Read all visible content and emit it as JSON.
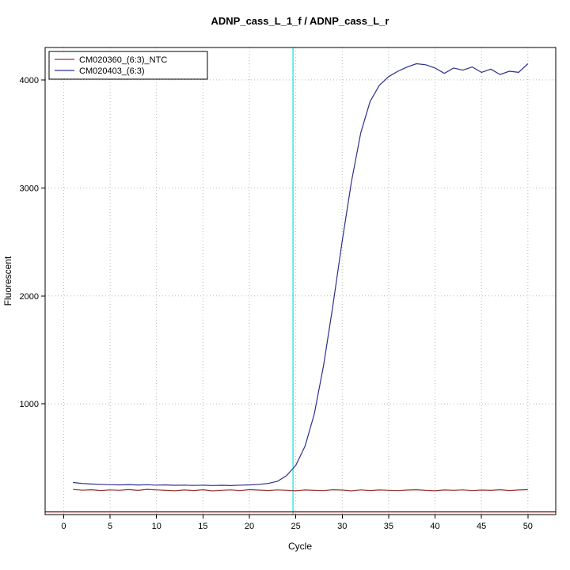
{
  "chart_data": {
    "type": "line",
    "title": "ADNP_cass_L_1_f / ADNP_cass_L_r",
    "xlabel": "Cycle",
    "ylabel": "Fluorescent",
    "xlim": [
      -2,
      53
    ],
    "ylim": [
      -25,
      4300
    ],
    "x_ticks": [
      0,
      5,
      10,
      15,
      20,
      25,
      30,
      35,
      40,
      45,
      50
    ],
    "y_ticks": [
      1000,
      2000,
      3000,
      4000
    ],
    "grid": "dotted",
    "legend_position": "top-left",
    "frame_color": "#000000",
    "grid_color": "#b8b8b8",
    "threshold_line": {
      "x": 24.7,
      "color": "#00e5e5"
    },
    "baseline_line": {
      "y": 0,
      "color": "#8b0000"
    },
    "x": [
      1,
      2,
      3,
      4,
      5,
      6,
      7,
      8,
      9,
      10,
      11,
      12,
      13,
      14,
      15,
      16,
      17,
      18,
      19,
      20,
      21,
      22,
      23,
      24,
      25,
      26,
      27,
      28,
      29,
      30,
      31,
      32,
      33,
      34,
      35,
      36,
      37,
      38,
      39,
      40,
      41,
      42,
      43,
      44,
      45,
      46,
      47,
      48,
      49,
      50
    ],
    "series": [
      {
        "name": "CM020360_(6:3)_NTC",
        "color": "#993333",
        "values": [
          208,
          201,
          205,
          198,
          204,
          200,
          207,
          199,
          209,
          204,
          199,
          196,
          203,
          198,
          205,
          195,
          200,
          204,
          197,
          206,
          202,
          198,
          204,
          200,
          196,
          203,
          199,
          197,
          205,
          202,
          195,
          204,
          198,
          203,
          200,
          197,
          202,
          205,
          199,
          196,
          203,
          200,
          204,
          197,
          202,
          199,
          205,
          198,
          203,
          206
        ]
      },
      {
        "name": "CM020403_(6:3)",
        "color": "#2e2e8f",
        "values": [
          272,
          263,
          258,
          255,
          252,
          250,
          253,
          249,
          251,
          248,
          250,
          246,
          248,
          245,
          247,
          244,
          246,
          243,
          248,
          250,
          255,
          263,
          282,
          335,
          430,
          610,
          910,
          1360,
          1910,
          2510,
          3060,
          3510,
          3800,
          3950,
          4030,
          4080,
          4120,
          4150,
          4140,
          4110,
          4060,
          4110,
          4090,
          4120,
          4070,
          4100,
          4050,
          4080,
          4070,
          4150
        ]
      }
    ]
  }
}
